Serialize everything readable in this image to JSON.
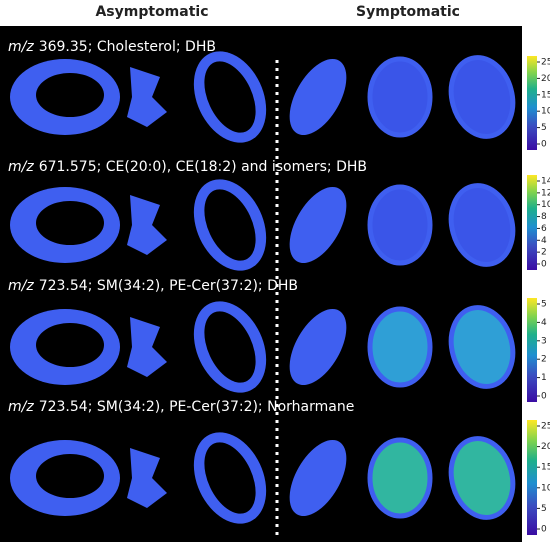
{
  "header": {
    "left": "Asymptomatic",
    "right": "Symptomatic"
  },
  "panels": [
    {
      "mz": "m/z",
      "label": "369.35; Cholesterol; DHB",
      "ticks": [
        "25",
        "20",
        "15",
        "10",
        "5",
        "0"
      ]
    },
    {
      "mz": "m/z",
      "label": "671.575; CE(20:0), CE(18:2) and isomers; DHB",
      "ticks": [
        "14",
        "12",
        "10",
        "8",
        "6",
        "4",
        "2",
        "0"
      ]
    },
    {
      "mz": "m/z",
      "label": "723.54; SM(34:2), PE-Cer(37:2); DHB",
      "ticks": [
        "5",
        "4",
        "3",
        "2",
        "1",
        "0"
      ]
    },
    {
      "mz": "m/z",
      "label": "723.54; SM(34:2), PE-Cer(37:2); Norharmane",
      "ticks": [
        "25",
        "20",
        "15",
        "10",
        "5",
        "0"
      ]
    }
  ]
}
